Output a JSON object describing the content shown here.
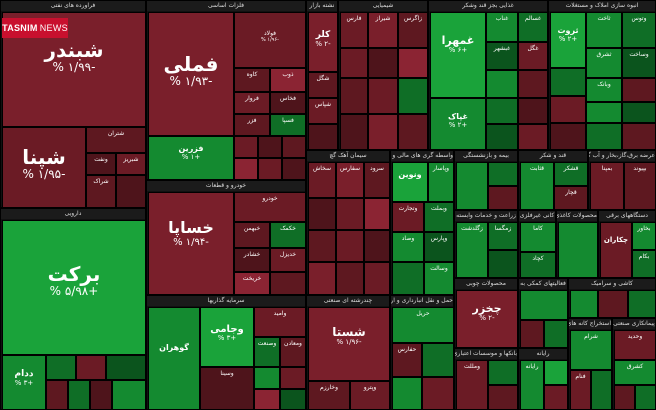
{
  "watermark": {
    "brand": "TASNIM",
    "suffix": "NEWS"
  },
  "sectors": {
    "s1": "فراورده های نفتی",
    "s2": "فلزات اساسی",
    "s3": "نشته بازار",
    "s4": "شیمیایی",
    "s5": "غذایی بجز قند وشکر",
    "s6": "انبوه سازی املاک و مستغلات",
    "s7": "دارویی",
    "s8": "خودرو و قطعات",
    "s9": "سیمان آهک گچ",
    "s10": "واسطه گری های مالی و پولی",
    "s11": "بیمه و بازنشستگی",
    "s12": "قند و شکر",
    "s13": "عرضه برق،گاز،بخار و آب گرم",
    "s14": "سرمایه گذاریها",
    "s15": "چندرشته ای صنعتی",
    "s16": "زراعت و خدمات وابسته",
    "s17": "کانی غیرفلزی",
    "s18": "محصولات کاغذی",
    "s19": "دستگاههای برقی",
    "s20": "حمل و نقل انبارداری و ارتباطات",
    "s21": "محصولات چوبی",
    "s22": "فعالیتهای کمکی به",
    "s23": "کاشی و سرامیک",
    "s24": "رایانه",
    "s25": "خدمات فنی و مهندسی",
    "s26": "بانکها و موسسات اعتباری",
    "s27": "استخراج کانه های فلزی",
    "s28": "هتل و رستوران",
    "s29": "مخابرات",
    "s30": "اطلاعات و ارتباطات",
    "s31": "فنی و مهندسی",
    "s32": "استخراج نفت",
    "s33": "لاستیک",
    "s34": "پیمانکاری صنعتی",
    "s35": "محصولات فلزی",
    "s36": "ماشین آلات",
    "s37": "چاپ"
  },
  "tiles": {
    "shebandar": {
      "name": "شبندر",
      "pct": "-۱/۹۹ %"
    },
    "shapna": {
      "name": "شپنا",
      "pct": "-۱/۹۵ %"
    },
    "shetran": {
      "name": "شتران",
      "pct": ""
    },
    "vanaft": {
      "name": "ونفت",
      "pct": ""
    },
    "shebriz": {
      "name": "شبریز",
      "pct": ""
    },
    "sharag": {
      "name": "شراک",
      "pct": ""
    },
    "barkat": {
      "name": "برکت",
      "pct": "+۵/۹۸ %"
    },
    "dedam": {
      "name": "ددام",
      "pct": "+۳ %"
    },
    "foulad": {
      "name": "فولاد",
      "pct": "-۱/۹۶ %"
    },
    "fameli": {
      "name": "فملی",
      "pct": "-۱/۹۳ %"
    },
    "kaveh": {
      "name": "کاوه",
      "pct": ""
    },
    "zob": {
      "name": "ذوب",
      "pct": ""
    },
    "farvar": {
      "name": "فروار",
      "pct": ""
    },
    "fakhas": {
      "name": "فخاس",
      "pct": ""
    },
    "fazar": {
      "name": "فزر",
      "pct": ""
    },
    "fesapa": {
      "name": "فسپا",
      "pct": ""
    },
    "fezran": {
      "name": "فزرین",
      "pct": "+۱ %"
    },
    "kola": {
      "name": "کلر",
      "pct": "-۲ %"
    },
    "shegol": {
      "name": "شگل",
      "pct": ""
    },
    "fares": {
      "name": "فارس",
      "pct": ""
    },
    "shiraz": {
      "name": "شیراز",
      "pct": ""
    },
    "shepas": {
      "name": "شپاس",
      "pct": ""
    },
    "zagros": {
      "name": "زاگرس",
      "pct": ""
    },
    "ghamhra": {
      "name": "غمهرا",
      "pct": "+۶ %"
    },
    "ghenab": {
      "name": "غناب",
      "pct": ""
    },
    "ghesal": {
      "name": "غسالم",
      "pct": ""
    },
    "ghebesh": {
      "name": "غبشهر",
      "pct": ""
    },
    "ghegol": {
      "name": "غگل",
      "pct": ""
    },
    "ghepak": {
      "name": "غپاک",
      "pct": "+۲ %"
    },
    "vatos": {
      "name": "وتوس",
      "pct": ""
    },
    "thervat": {
      "name": "ثروت",
      "pct": "+۲ %"
    },
    "thegol": {
      "name": "ثاخت",
      "pct": ""
    },
    "thesh": {
      "name": "ثشرق",
      "pct": ""
    },
    "vesakh": {
      "name": "وساخت",
      "pct": ""
    },
    "vebank": {
      "name": "وبانک",
      "pct": ""
    },
    "khesapa": {
      "name": "خساپا",
      "pct": "-۱/۹۴ %"
    },
    "khodro": {
      "name": "خودرو",
      "pct": ""
    },
    "khebahman": {
      "name": "خبهمن",
      "pct": ""
    },
    "khecomit": {
      "name": "خکمک",
      "pct": ""
    },
    "kheshad": {
      "name": "خشادر",
      "pct": ""
    },
    "khedizel": {
      "name": "خدیزل",
      "pct": ""
    },
    "kherikhet": {
      "name": "خریخت",
      "pct": ""
    },
    "sekhazar": {
      "name": "سخاش",
      "pct": ""
    },
    "sefars": {
      "name": "سفارس",
      "pct": ""
    },
    "saroud": {
      "name": "سرود",
      "pct": ""
    },
    "vanavin": {
      "name": "ونوین",
      "pct": ""
    },
    "vepasar": {
      "name": "وپاسار",
      "pct": ""
    },
    "vegostar": {
      "name": "وتجارت",
      "pct": ""
    },
    "vebahman": {
      "name": "وبملت",
      "pct": ""
    },
    "vesapa": {
      "name": "وصاد",
      "pct": ""
    },
    "vepas": {
      "name": "وپارس",
      "pct": ""
    },
    "vekhavar": {
      "name": "وسالت",
      "pct": ""
    },
    "tafe": {
      "name": "قثابت",
      "pct": ""
    },
    "gheshekar": {
      "name": "قشکر",
      "pct": ""
    },
    "ghechar": {
      "name": "قچار",
      "pct": ""
    },
    "bemapna": {
      "name": "بمپنا",
      "pct": ""
    },
    "bepiva": {
      "name": "بپیوند",
      "pct": ""
    },
    "vegohar": {
      "name": "گوهران",
      "pct": ""
    },
    "vamine": {
      "name": "وامید",
      "pct": ""
    },
    "vesanat": {
      "name": "وصنعت",
      "pct": ""
    },
    "vemadan": {
      "name": "ومعادن",
      "pct": ""
    },
    "vejami": {
      "name": "وجامی",
      "pct": "+۳ %"
    },
    "vesina": {
      "name": "وسینا",
      "pct": ""
    },
    "shasta": {
      "name": "شستا",
      "pct": "-۱/۹۶ %"
    },
    "vedarkht": {
      "name": "وخارزم",
      "pct": ""
    },
    "vepasarg": {
      "name": "وپترو",
      "pct": ""
    },
    "zegrbe": {
      "name": "زگلدشت",
      "pct": ""
    },
    "zemeghan": {
      "name": "زمگسا",
      "pct": ""
    },
    "kakhdar": {
      "name": "کاما",
      "pct": ""
    },
    "kacham": {
      "name": "کچاد",
      "pct": ""
    },
    "chekaran": {
      "name": "چکاران",
      "pct": ""
    },
    "bkhaz": {
      "name": "بخاور",
      "pct": ""
    },
    "bekhir": {
      "name": "بکام",
      "pct": ""
    },
    "hhafari": {
      "name": "حفارس",
      "pct": ""
    },
    "haril": {
      "name": "حریل",
      "pct": ""
    },
    "chakhar": {
      "name": "چخزر",
      "pct": "-۲ %"
    },
    "vemeli": {
      "name": "ومللت",
      "pct": ""
    },
    "rayane": {
      "name": "رایانه",
      "pct": ""
    },
    "sharam": {
      "name": "شرام",
      "pct": ""
    },
    "fenam": {
      "name": "فنام",
      "pct": ""
    },
    "vehadid": {
      "name": "وحدید",
      "pct": ""
    },
    "keshra": {
      "name": "کشرق",
      "pct": ""
    }
  }
}
